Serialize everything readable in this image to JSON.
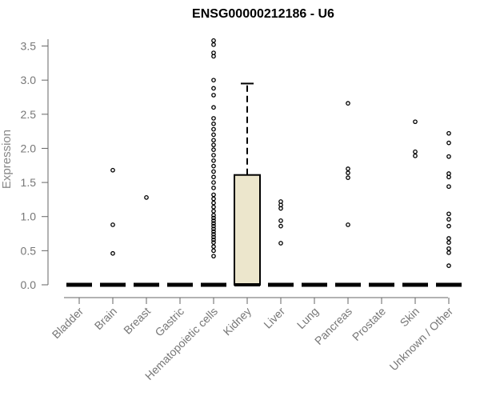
{
  "chart_data": {
    "type": "box",
    "title": "ENSG00000212186 - U6",
    "xlabel": "",
    "ylabel": "Expression",
    "ylim": [
      0,
      3.6
    ],
    "yticks": [
      "0.0",
      "0.5",
      "1.0",
      "1.5",
      "2.0",
      "2.5",
      "3.0",
      "3.5"
    ],
    "categories": [
      "Bladder",
      "Brain",
      "Breast",
      "Gastric",
      "Hematopoietic cells",
      "Kidney",
      "Liver",
      "Lung",
      "Pancreas",
      "Prostate",
      "Skin",
      "Unknown / Other"
    ],
    "boxes": [
      {
        "category": "Bladder",
        "q1": 0,
        "median": 0,
        "q3": 0,
        "whisker_low": 0,
        "whisker_high": 0,
        "outliers": []
      },
      {
        "category": "Brain",
        "q1": 0,
        "median": 0,
        "q3": 0,
        "whisker_low": 0,
        "whisker_high": 0,
        "outliers": [
          1.68,
          0.88,
          0.46
        ]
      },
      {
        "category": "Breast",
        "q1": 0,
        "median": 0,
        "q3": 0,
        "whisker_low": 0,
        "whisker_high": 0,
        "outliers": [
          1.28
        ]
      },
      {
        "category": "Gastric",
        "q1": 0,
        "median": 0,
        "q3": 0,
        "whisker_low": 0,
        "whisker_high": 0,
        "outliers": []
      },
      {
        "category": "Hematopoietic cells",
        "q1": 0,
        "median": 0,
        "q3": 0,
        "whisker_low": 0,
        "whisker_high": 0,
        "outliers": [
          3.58,
          3.52,
          3.4,
          3.35,
          3.0,
          2.88,
          2.78,
          2.6,
          2.44,
          2.36,
          2.28,
          2.2,
          2.12,
          2.05,
          1.98,
          1.9,
          1.82,
          1.74,
          1.66,
          1.58,
          1.5,
          1.42,
          1.32,
          1.26,
          1.2,
          1.14,
          1.08,
          1.02,
          0.98,
          0.94,
          0.9,
          0.86,
          0.82,
          0.78,
          0.74,
          0.7,
          0.66,
          0.62,
          0.56,
          0.5,
          0.42
        ]
      },
      {
        "category": "Kidney",
        "q1": 0,
        "median": 0,
        "q3": 1.61,
        "whisker_low": 0,
        "whisker_high": 2.95,
        "outliers": []
      },
      {
        "category": "Liver",
        "q1": 0,
        "median": 0,
        "q3": 0,
        "whisker_low": 0,
        "whisker_high": 0,
        "outliers": [
          1.22,
          1.17,
          1.12,
          0.94,
          0.86,
          0.61
        ]
      },
      {
        "category": "Lung",
        "q1": 0,
        "median": 0,
        "q3": 0,
        "whisker_low": 0,
        "whisker_high": 0,
        "outliers": []
      },
      {
        "category": "Pancreas",
        "q1": 0,
        "median": 0,
        "q3": 0,
        "whisker_low": 0,
        "whisker_high": 0,
        "outliers": [
          2.66,
          1.7,
          1.64,
          1.57,
          0.88
        ]
      },
      {
        "category": "Prostate",
        "q1": 0,
        "median": 0,
        "q3": 0,
        "whisker_low": 0,
        "whisker_high": 0,
        "outliers": []
      },
      {
        "category": "Skin",
        "q1": 0,
        "median": 0,
        "q3": 0,
        "whisker_low": 0,
        "whisker_high": 0,
        "outliers": [
          2.39,
          1.95,
          1.89
        ]
      },
      {
        "category": "Unknown / Other",
        "q1": 0,
        "median": 0,
        "q3": 0,
        "whisker_low": 0,
        "whisker_high": 0,
        "outliers": [
          2.22,
          2.08,
          1.88,
          1.63,
          1.58,
          1.44,
          1.04,
          0.96,
          0.86,
          0.68,
          0.62,
          0.53,
          0.47,
          0.28
        ]
      }
    ],
    "colors": {
      "box_fill": "#ece6cc",
      "box_stroke": "#000000",
      "axis": "#666666",
      "text": "#777777"
    },
    "grid": false,
    "legend": "none"
  }
}
